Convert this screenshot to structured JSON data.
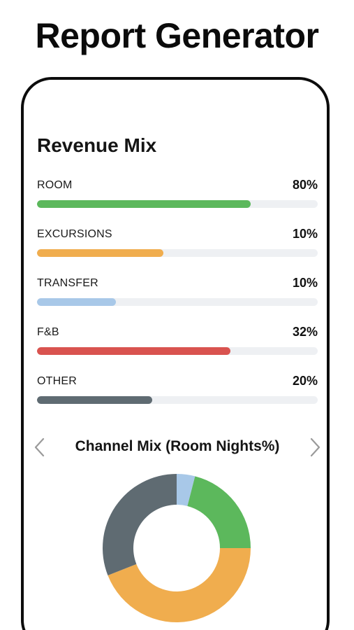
{
  "header": {
    "title": "Report Generator"
  },
  "revenue_mix": {
    "title": "Revenue Mix",
    "items": [
      {
        "label": "ROOM",
        "percent_label": "80%",
        "fill": 0.76,
        "color": "#5cb85c"
      },
      {
        "label": "EXCURSIONS",
        "percent_label": "10%",
        "fill": 0.45,
        "color": "#f0ad4e"
      },
      {
        "label": "TRANSFER",
        "percent_label": "10%",
        "fill": 0.28,
        "color": "#a8c8e8"
      },
      {
        "label": "F&B",
        "percent_label": "32%",
        "fill": 0.69,
        "color": "#d9534f"
      },
      {
        "label": "OTHER",
        "percent_label": "20%",
        "fill": 0.41,
        "color": "#5f6b72"
      }
    ]
  },
  "channel_mix": {
    "title": "Channel Mix (Room Nights%)",
    "prev_icon": "chevron-left-icon",
    "next_icon": "chevron-right-icon"
  },
  "chart_data": {
    "type": "pie",
    "title": "Channel Mix (Room Nights%)",
    "values": [
      4,
      21,
      44,
      31
    ],
    "colors": [
      "#a8c8e8",
      "#5cb85c",
      "#f0ad4e",
      "#5f6b72"
    ],
    "donut": true
  }
}
